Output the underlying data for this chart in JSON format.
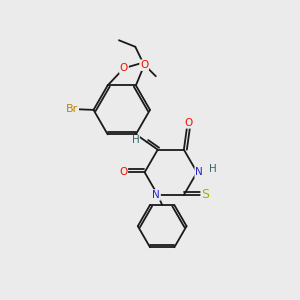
{
  "bg_color": "#ebebeb",
  "bond_color": "#1a1a1a",
  "bond_width": 1.3,
  "atom_colors": {
    "Br": "#b8860b",
    "O": "#ee1100",
    "N": "#2222cc",
    "S": "#aaaa00",
    "NH": "#336666",
    "C": "#1a1a1a"
  },
  "font_size": 7.5,
  "fig_size": [
    3.0,
    3.0
  ],
  "dpi": 100,
  "xlim": [
    0,
    10
  ],
  "ylim": [
    0,
    10
  ]
}
